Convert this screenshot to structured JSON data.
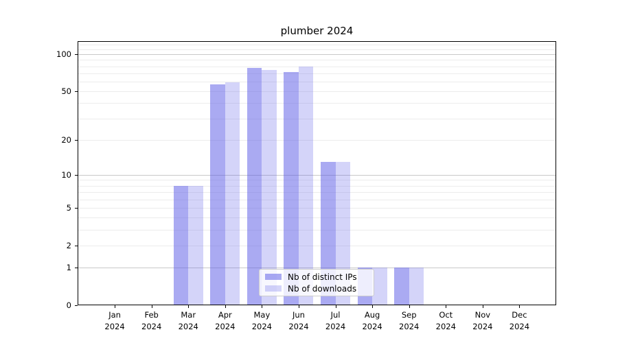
{
  "chart_data": {
    "type": "bar",
    "title": "plumber 2024",
    "categories": [
      "Jan",
      "Feb",
      "Mar",
      "Apr",
      "May",
      "Jun",
      "Jul",
      "Aug",
      "Sep",
      "Oct",
      "Nov",
      "Dec"
    ],
    "year": "2024",
    "series": [
      {
        "name": "Nb of distinct IPs",
        "base_color": "#5555e6",
        "alpha": 0.5,
        "values": [
          0,
          0,
          8,
          57,
          77,
          72,
          13,
          1,
          1,
          0,
          0,
          0
        ]
      },
      {
        "name": "Nb of downloads",
        "base_color": "#5555e6",
        "alpha": 0.25,
        "values": [
          0,
          0,
          8,
          59,
          75,
          80,
          13,
          1,
          1,
          0,
          0,
          0
        ]
      }
    ],
    "yscale": "log1p",
    "ylim": [
      0,
      128
    ],
    "yticks": [
      0,
      1,
      2,
      5,
      10,
      20,
      50,
      100
    ],
    "minor_gridline_values": [
      2,
      3,
      4,
      5,
      6,
      7,
      8,
      9,
      20,
      30,
      40,
      50,
      60,
      70,
      80,
      90,
      110,
      120
    ],
    "major_gridline_values": [
      1,
      10,
      100
    ],
    "grid": true,
    "legend": {
      "position": "lower-center",
      "labels": [
        "Nb of distinct IPs",
        "Nb of downloads"
      ]
    }
  },
  "colors": {
    "axis": "#000000",
    "grid_minor": "#ececec",
    "grid_major": "#c8c8c8",
    "legend_border": "#cccccc"
  }
}
